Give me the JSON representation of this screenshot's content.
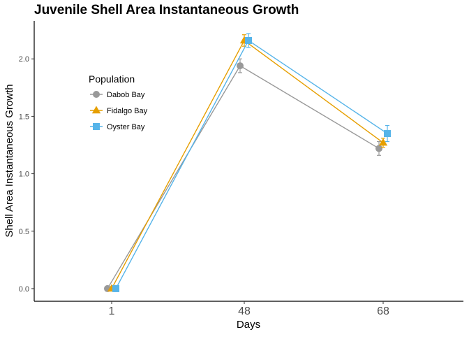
{
  "chart_data": {
    "type": "line",
    "title": "Juvenile Shell Area Instantaneous Growth",
    "xlabel": "Days",
    "ylabel": "Shell Area Instantaneous Growth",
    "categories": [
      "1",
      "48",
      "68"
    ],
    "yticks": [
      "0.0",
      "0.5",
      "1.0",
      "1.5",
      "2.0"
    ],
    "ylim": [
      -0.11,
      2.33
    ],
    "grid": false,
    "legend": {
      "title": "Population",
      "position": "inside top-left"
    },
    "series": [
      {
        "name": "Dabob Bay",
        "color": "#999999",
        "marker": "circle",
        "values": [
          0.0,
          1.94,
          1.22
        ],
        "errors": [
          0.0,
          0.06,
          0.06
        ]
      },
      {
        "name": "Fidalgo Bay",
        "color": "#E69F00",
        "marker": "triangle",
        "values": [
          0.0,
          2.16,
          1.27
        ],
        "errors": [
          0.0,
          0.05,
          0.04
        ]
      },
      {
        "name": "Oyster Bay",
        "color": "#56B4E9",
        "marker": "square",
        "values": [
          0.0,
          2.16,
          1.35
        ],
        "errors": [
          0.0,
          0.06,
          0.07
        ]
      }
    ]
  }
}
